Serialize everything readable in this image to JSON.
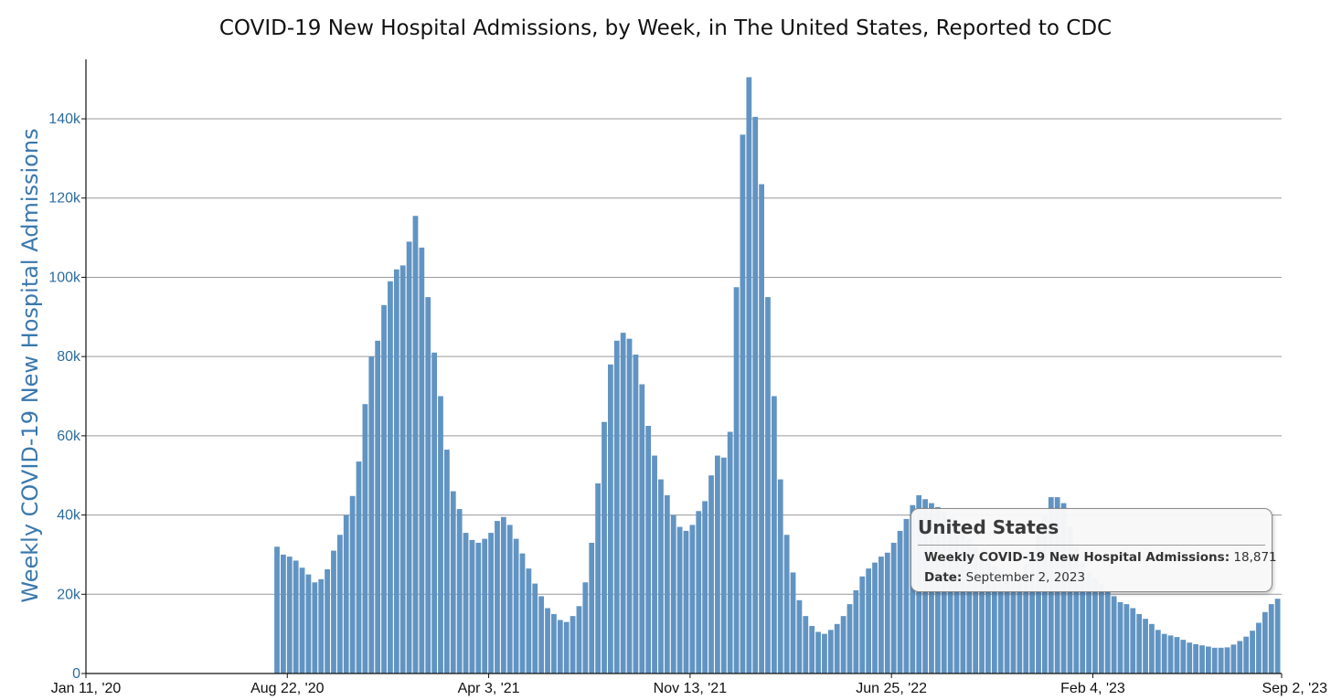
{
  "chart_data": {
    "type": "bar",
    "title": "COVID-19 New Hospital Admissions, by Week, in The United States, Reported to CDC",
    "ylabel": "Weekly COVID-19 New Hospital Admissions",
    "xlabel": "",
    "ylim": [
      0,
      155000
    ],
    "yticks": [
      0,
      20000,
      40000,
      60000,
      80000,
      100000,
      120000,
      140000
    ],
    "ytick_labels": [
      "0",
      "20k",
      "40k",
      "60k",
      "80k",
      "100k",
      "120k",
      "140k"
    ],
    "x_start": "2020-01-11",
    "x_end": "2023-09-02",
    "xticks": [
      "2020-01-11",
      "2020-08-22",
      "2021-04-03",
      "2021-11-13",
      "2022-06-25",
      "2023-02-04",
      "2023-09-02"
    ],
    "xtick_labels": [
      "Jan 11, '20",
      "Aug 22, '20",
      "Apr 3, '21",
      "Nov 13, '21",
      "Jun 25, '22",
      "Feb 4, '23",
      "Sep 2, '23"
    ],
    "grid": true,
    "bar_color": "#6194c2",
    "series_first_week": "2020-08-08",
    "values": [
      32000,
      30000,
      29500,
      28500,
      26700,
      25000,
      23000,
      23800,
      26300,
      31000,
      35000,
      40000,
      44800,
      53500,
      68000,
      80000,
      84000,
      93000,
      99000,
      102000,
      103000,
      109000,
      115500,
      107500,
      95000,
      81000,
      70000,
      56500,
      46000,
      41500,
      35500,
      33700,
      33000,
      34000,
      35500,
      38500,
      39500,
      37500,
      34000,
      30300,
      26500,
      22700,
      19500,
      16500,
      15000,
      13500,
      13000,
      14500,
      17000,
      23000,
      33000,
      48000,
      63500,
      78000,
      84000,
      86000,
      84500,
      80500,
      73000,
      62500,
      55000,
      49000,
      45000,
      40000,
      37000,
      36000,
      37500,
      41000,
      43500,
      50000,
      55000,
      54500,
      61000,
      97500,
      136000,
      150500,
      140500,
      123500,
      95000,
      70000,
      49000,
      35000,
      25500,
      18500,
      14500,
      12000,
      10500,
      10000,
      11000,
      12500,
      14500,
      17500,
      21000,
      24500,
      26500,
      28000,
      29500,
      30500,
      33000,
      36000,
      39000,
      42500,
      45000,
      44000,
      43000,
      42000,
      41000,
      39500,
      38500,
      36500,
      34000,
      32000,
      30000,
      28500,
      27000,
      26000,
      25500,
      25000,
      25500,
      27500,
      30500,
      35000,
      40000,
      44500,
      44500,
      43000,
      37000,
      32000,
      28000,
      25500,
      24000,
      22500,
      21000,
      19500,
      18000,
      17500,
      16500,
      15000,
      13800,
      12500,
      11000,
      10000,
      9600,
      9200,
      8500,
      7800,
      7400,
      7100,
      6800,
      6500,
      6500,
      6600,
      7300,
      8200,
      9300,
      10800,
      12800,
      15500,
      17500,
      18871
    ]
  },
  "tooltip": {
    "title": "United States",
    "metric_label": "Weekly COVID-19 New Hospital Admissions:",
    "metric_value": "18,871",
    "date_label": "Date:",
    "date_value": "September 2, 2023"
  }
}
